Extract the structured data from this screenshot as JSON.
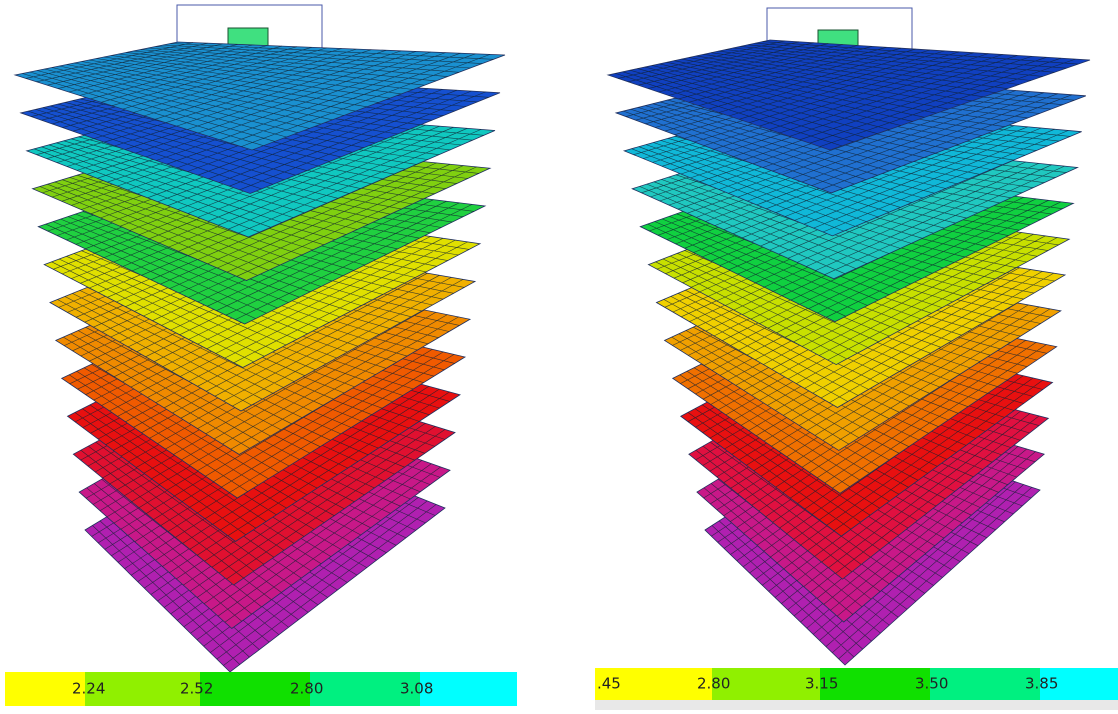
{
  "panels": [
    {
      "scale_labels": [
        "2.24",
        "2.52",
        "2.80",
        "3.08"
      ]
    },
    {
      "scale_labels": [
        ".45",
        "2.80",
        "3.15",
        "3.50",
        "3.85"
      ]
    }
  ]
}
